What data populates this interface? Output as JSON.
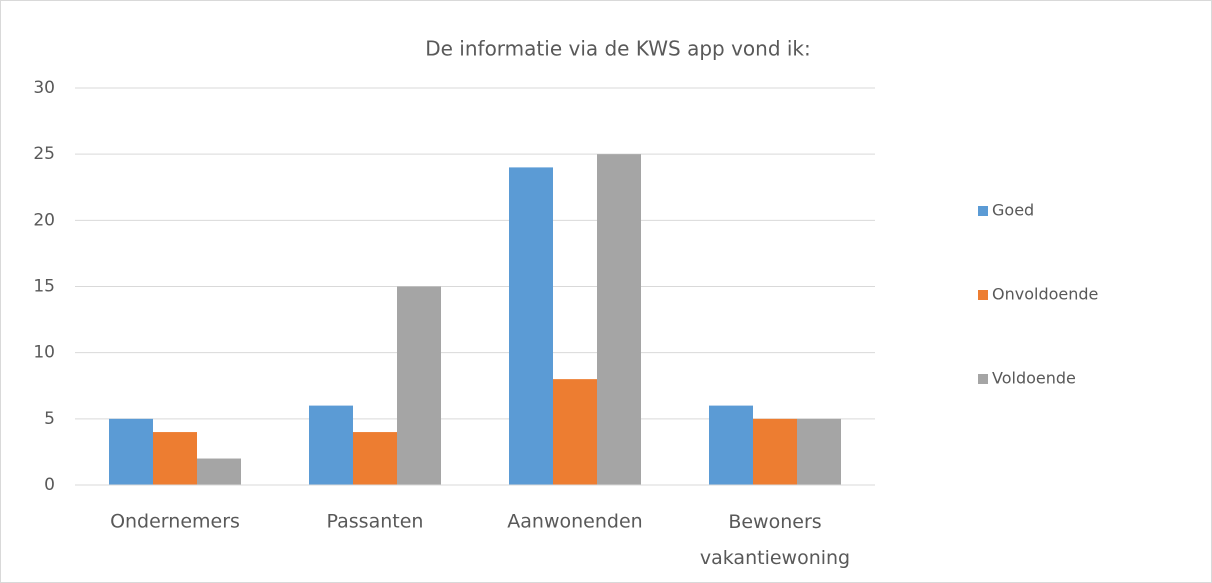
{
  "chart_data": {
    "type": "bar",
    "title": "De informatie via de KWS app vond ik:",
    "categories": [
      "Ondernemers",
      "Passanten",
      "Aanwonenden",
      "Bewoners vakantiewoning"
    ],
    "series": [
      {
        "name": "Goed",
        "color": "#5b9bd5",
        "values": [
          5,
          6,
          24,
          6
        ]
      },
      {
        "name": "Onvoldoende",
        "color": "#ed7d31",
        "values": [
          4,
          4,
          8,
          5
        ]
      },
      {
        "name": "Voldoende",
        "color": "#a5a5a5",
        "values": [
          2,
          15,
          25,
          5
        ]
      }
    ],
    "ylim": [
      0,
      30
    ],
    "yticks": [
      0,
      5,
      10,
      15,
      20,
      25,
      30
    ],
    "grid": true,
    "legend": "right"
  }
}
